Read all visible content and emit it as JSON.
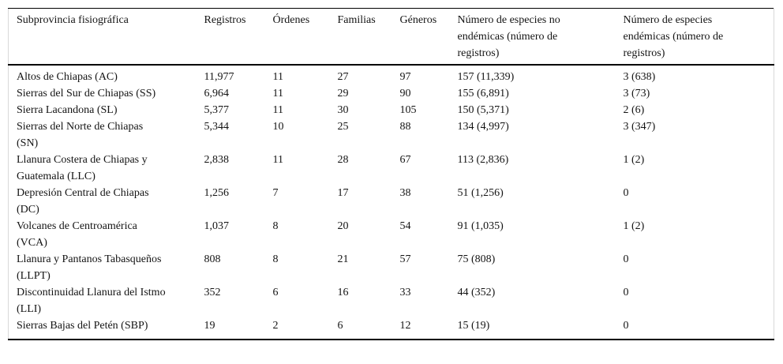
{
  "table": {
    "columns": [
      {
        "label": "Subprovincia fisiográfica"
      },
      {
        "label": "Registros"
      },
      {
        "label": "Órdenes"
      },
      {
        "label": "Familias"
      },
      {
        "label": "Géneros"
      },
      {
        "label": "Número de especies no endémicas (número de registros)"
      },
      {
        "label": "Número de especies endémicas (número de registros)"
      }
    ],
    "rows": [
      [
        "Altos de Chiapas (AC)",
        "11,977",
        "11",
        "27",
        "97",
        "157 (11,339)",
        "3 (638)"
      ],
      [
        "Sierras del Sur de Chiapas (SS)",
        "6,964",
        "11",
        "29",
        "90",
        "155 (6,891)",
        "3 (73)"
      ],
      [
        "Sierra Lacandona (SL)",
        "5,377",
        "11",
        "30",
        "105",
        "150 (5,371)",
        "2 (6)"
      ],
      [
        "Sierras del Norte de Chiapas (SN)",
        "5,344",
        "10",
        "25",
        "88",
        "134 (4,997)",
        "3 (347)"
      ],
      [
        "Llanura Costera de Chiapas y Guatemala (LLC)",
        "2,838",
        "11",
        "28",
        "67",
        "113 (2,836)",
        "1 (2)"
      ],
      [
        "Depresión Central de Chiapas (DC)",
        "1,256",
        "7",
        "17",
        "38",
        "51 (1,256)",
        "0"
      ],
      [
        "Volcanes de Centroamérica (VCA)",
        "1,037",
        "8",
        "20",
        "54",
        "91 (1,035)",
        "1 (2)"
      ],
      [
        "Llanura y Pantanos Tabasqueños (LLPT)",
        "808",
        "8",
        "21",
        "57",
        "75 (808)",
        "0"
      ],
      [
        "Discontinuidad Llanura del Istmo (LLI)",
        "352",
        "6",
        "16",
        "33",
        "44 (352)",
        "0"
      ],
      [
        "Sierras Bajas del Petén (SBP)",
        "19",
        "2",
        "6",
        "12",
        "15 (19)",
        "0"
      ]
    ]
  }
}
